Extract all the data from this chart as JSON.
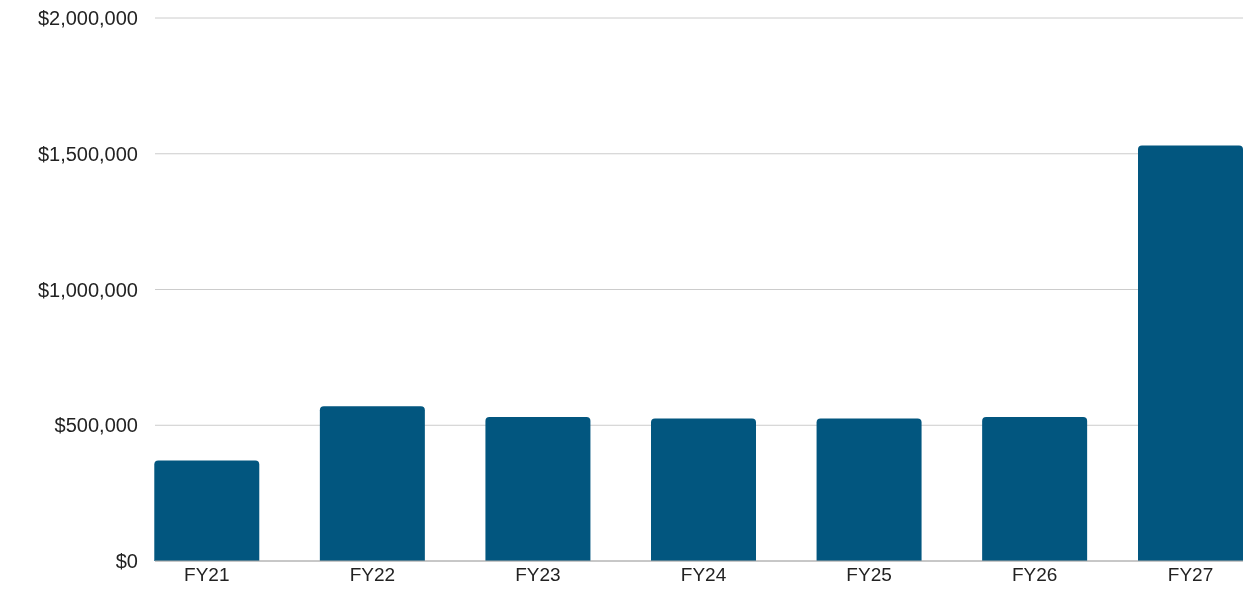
{
  "chart_data": {
    "type": "bar",
    "categories": [
      "FY21",
      "FY22",
      "FY23",
      "FY24",
      "FY25",
      "FY26",
      "FY27"
    ],
    "values": [
      370000,
      570000,
      530000,
      525000,
      525000,
      530000,
      1530000
    ],
    "color": "#02567f",
    "ylim": [
      0,
      2000000
    ],
    "yticks": [
      {
        "value": 0,
        "label": "$0"
      },
      {
        "value": 500000,
        "label": "$500,000"
      },
      {
        "value": 1000000,
        "label": "$1,000,000"
      },
      {
        "value": 1500000,
        "label": "$1,500,000"
      },
      {
        "value": 2000000,
        "label": "$2,000,000"
      }
    ],
    "grid": "y"
  }
}
